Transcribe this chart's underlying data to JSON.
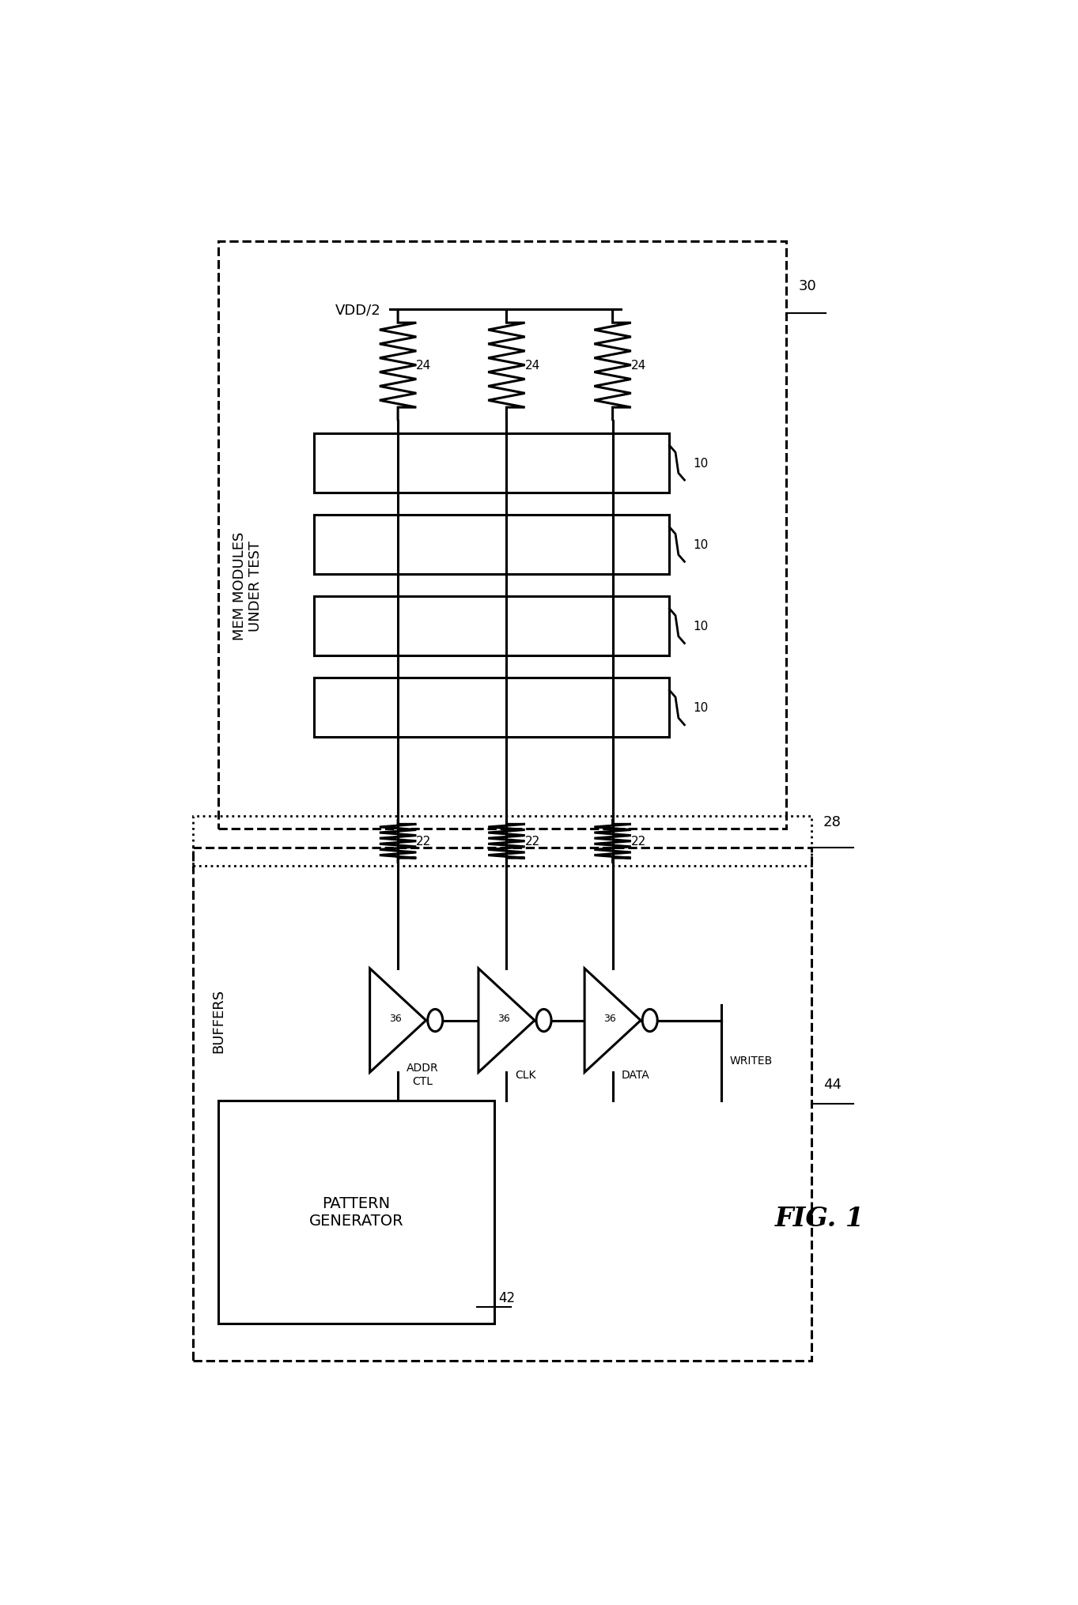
{
  "bg_color": "#ffffff",
  "line_color": "#000000",
  "fig_width": 13.63,
  "fig_height": 20.31,
  "dpi": 100,
  "text_vdd": "VDD/2",
  "text_mem": "MEM MODULES\nUNDER TEST",
  "text_buffers": "BUFFERS",
  "text_pattern": "PATTERN\nGENERATOR",
  "text_addr": "ADDR\nCTL",
  "text_clk": "CLK",
  "text_data": "DATA",
  "text_writeb": "WRITEB",
  "text_fig": "FIG. 1",
  "label_30": "30",
  "label_28": "28",
  "label_44": "44",
  "label_42": "42",
  "label_36": "36",
  "label_24": "24",
  "label_22": "22",
  "label_10": "10"
}
